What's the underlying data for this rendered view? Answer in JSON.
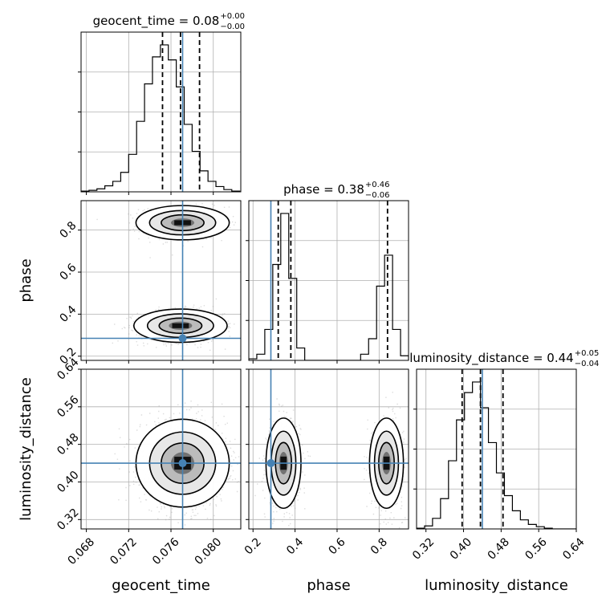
{
  "chart_data": {
    "type": "corner",
    "truth_color": "#4682b4",
    "parameters": [
      {
        "name": "geocent_time",
        "label": "geocent_time",
        "range": [
          0.0675,
          0.0826
        ],
        "ticks": [
          0.068,
          0.072,
          0.076,
          0.08
        ],
        "tick_labels": [
          "0.068",
          "0.072",
          "0.076",
          "0.080"
        ],
        "truth": 0.0771,
        "quantiles": [
          0.0752,
          0.0769,
          0.0787
        ],
        "title_main": "geocent_time = 0.08",
        "title_sup": "+0.00",
        "title_sub": "−0.00",
        "hist": {
          "edges_start": 0.0675,
          "bin_width": 0.00075,
          "heights": [
            0.005,
            0.01,
            0.02,
            0.04,
            0.07,
            0.13,
            0.25,
            0.47,
            0.72,
            0.9,
            0.98,
            0.88,
            0.7,
            0.45,
            0.27,
            0.14,
            0.07,
            0.035,
            0.015,
            0.005
          ]
        }
      },
      {
        "name": "phase",
        "label": "phase",
        "range": [
          0.18,
          0.94
        ],
        "ticks": [
          0.2,
          0.4,
          0.6,
          0.8
        ],
        "tick_labels": [
          "0.2",
          "0.4",
          "0.6",
          "0.8"
        ],
        "truth": 0.285,
        "quantiles": [
          0.32,
          0.38,
          0.84
        ],
        "title_main": "phase = 0.38",
        "title_sup": "+0.46",
        "title_sub": "−0.06",
        "hist": {
          "edges_start": 0.18,
          "bin_width": 0.038,
          "heights": [
            0.01,
            0.04,
            0.2,
            0.62,
            0.95,
            0.53,
            0.08,
            0.0,
            0.0,
            0.0,
            0.0,
            0.0,
            0.0,
            0.0,
            0.04,
            0.14,
            0.48,
            0.68,
            0.2,
            0.03
          ]
        }
      },
      {
        "name": "luminosity_distance",
        "label": "luminosity_distance",
        "range": [
          0.3,
          0.64
        ],
        "ticks": [
          0.32,
          0.4,
          0.48,
          0.56,
          0.64
        ],
        "tick_labels": [
          "0.32",
          "0.40",
          "0.48",
          "0.56",
          "0.64"
        ],
        "truth": 0.44,
        "quantiles": [
          0.397,
          0.436,
          0.484
        ],
        "title_main": "luminosity_distance = 0.44",
        "title_sup": "+0.05",
        "title_sub": "−0.04",
        "hist": {
          "edges_start": 0.3,
          "bin_width": 0.017,
          "heights": [
            0.005,
            0.02,
            0.07,
            0.2,
            0.45,
            0.72,
            0.9,
            0.97,
            0.8,
            0.57,
            0.37,
            0.22,
            0.12,
            0.06,
            0.03,
            0.015,
            0.005,
            0.0,
            0.0,
            0.0
          ]
        }
      }
    ],
    "pairs": [
      {
        "x": "geocent_time",
        "y": "phase",
        "modes": [
          {
            "cx": 0.0771,
            "cy": 0.835,
            "sx": 0.00175,
            "sy": 0.034,
            "weight": 0.42
          },
          {
            "cx": 0.0769,
            "cy": 0.345,
            "sx": 0.00175,
            "sy": 0.033,
            "weight": 0.58
          }
        ]
      },
      {
        "x": "geocent_time",
        "y": "luminosity_distance",
        "modes": [
          {
            "cx": 0.0771,
            "cy": 0.44,
            "sx": 0.00175,
            "sy": 0.039,
            "weight": 1.0
          }
        ]
      },
      {
        "x": "phase",
        "y": "luminosity_distance",
        "modes": [
          {
            "cx": 0.345,
            "cy": 0.44,
            "sx": 0.033,
            "sy": 0.04,
            "weight": 0.58
          },
          {
            "cx": 0.835,
            "cy": 0.44,
            "sx": 0.032,
            "sy": 0.04,
            "weight": 0.42
          }
        ]
      }
    ],
    "grid": true
  }
}
